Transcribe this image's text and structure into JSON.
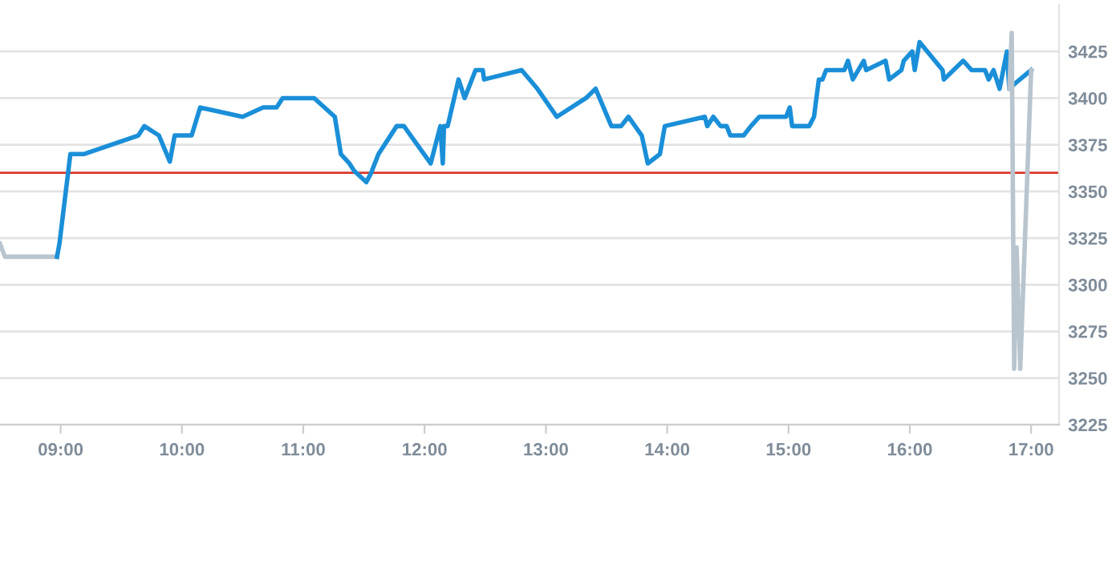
{
  "chart_data": {
    "type": "line",
    "xlim": [
      8.5,
      17.23
    ],
    "ylim": [
      3225,
      3450
    ],
    "xticks": [
      {
        "value": 9,
        "label": "09:00"
      },
      {
        "value": 10,
        "label": "10:00"
      },
      {
        "value": 11,
        "label": "11:00"
      },
      {
        "value": 12,
        "label": "12:00"
      },
      {
        "value": 13,
        "label": "13:00"
      },
      {
        "value": 14,
        "label": "14:00"
      },
      {
        "value": 15,
        "label": "15:00"
      },
      {
        "value": 16,
        "label": "16:00"
      },
      {
        "value": 17,
        "label": "17:00"
      }
    ],
    "yticks": [
      3225,
      3250,
      3275,
      3300,
      3325,
      3350,
      3375,
      3400,
      3425
    ],
    "grid": "y",
    "legend": false,
    "marker": "none",
    "line_style": "solid",
    "ref_lines": [
      {
        "axis": "y",
        "value": 3360,
        "color": "#d9372b"
      }
    ],
    "series": [
      {
        "color": "#b8c4ce",
        "x": [
          8.5,
          8.54,
          8.97
        ],
        "values": [
          3322,
          3315,
          3315
        ]
      },
      {
        "color": "#1a8fd8",
        "x": [
          8.97,
          8.99,
          9.08,
          9.19,
          9.64,
          9.69,
          9.81,
          9.9,
          9.94,
          10.08,
          10.15,
          10.5,
          10.67,
          10.78,
          10.83,
          11.09,
          11.26,
          11.31,
          11.38,
          11.42,
          11.52,
          11.56,
          11.62,
          11.77,
          11.83,
          12.05,
          12.13,
          12.15,
          12.16,
          12.19,
          12.28,
          12.33,
          12.42,
          12.48,
          12.49,
          12.8,
          12.93,
          13.09,
          13.33,
          13.41,
          13.54,
          13.62,
          13.68,
          13.79,
          13.84,
          13.94,
          13.98,
          14.31,
          14.33,
          14.38,
          14.44,
          14.49,
          14.52,
          14.63,
          14.69,
          14.76,
          14.98,
          15.01,
          15.03,
          15.17,
          15.21,
          15.25,
          15.28,
          15.31,
          15.46,
          15.49,
          15.53,
          15.62,
          15.64,
          15.8,
          15.83,
          15.93,
          15.95,
          16.02,
          16.04,
          16.08,
          16.27,
          16.28,
          16.44,
          16.51,
          16.62,
          16.65,
          16.69,
          16.74,
          16.8,
          16.82,
          16.87,
          17.0
        ],
        "values": [
          3315,
          3322,
          3370,
          3370,
          3380,
          3385,
          3380,
          3366,
          3380,
          3380,
          3395,
          3390,
          3395,
          3395,
          3400,
          3400,
          3390,
          3370,
          3365,
          3361,
          3355,
          3360,
          3370,
          3385,
          3385,
          3365,
          3385,
          3365,
          3385,
          3385,
          3410,
          3400,
          3415,
          3415,
          3410,
          3415,
          3405,
          3390,
          3400,
          3405,
          3385,
          3385,
          3390,
          3380,
          3365,
          3370,
          3385,
          3390,
          3385,
          3390,
          3385,
          3385,
          3380,
          3380,
          3385,
          3390,
          3390,
          3395,
          3385,
          3385,
          3390,
          3410,
          3410,
          3415,
          3415,
          3420,
          3410,
          3420,
          3415,
          3420,
          3410,
          3415,
          3420,
          3425,
          3415,
          3430,
          3415,
          3410,
          3420,
          3415,
          3415,
          3410,
          3415,
          3405,
          3425,
          3405,
          3408,
          3415
        ]
      },
      {
        "color": "#b8c4ce",
        "x": [
          16.82,
          16.84,
          16.86,
          16.88,
          16.91,
          17.0
        ],
        "values": [
          3405,
          3435,
          3255,
          3320,
          3255,
          3415
        ]
      }
    ]
  }
}
